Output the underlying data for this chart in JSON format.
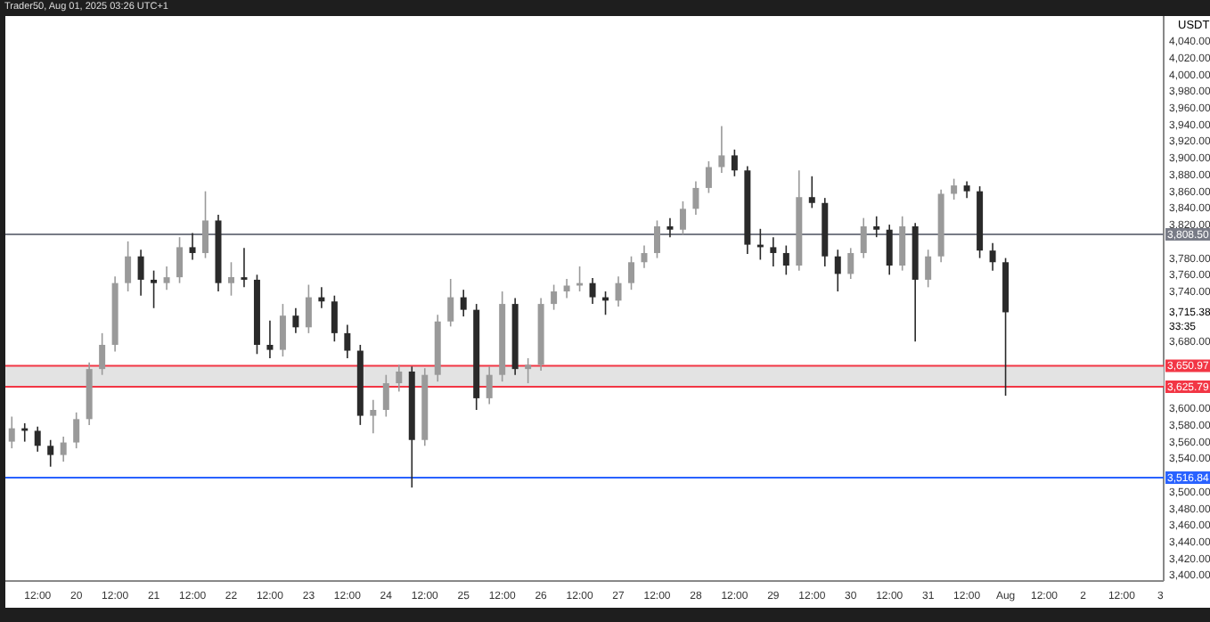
{
  "chart_data": {
    "type": "candlestick",
    "title": "Trader50, Aug 01, 2025 03:26 UTC+1",
    "ylabel": "USDT",
    "x": [
      "2025-07-19T04:00",
      "2025-07-19T08:00",
      "2025-07-19T12:00",
      "2025-07-19T16:00",
      "2025-07-19T20:00",
      "2025-07-20T00:00",
      "2025-07-20T04:00",
      "2025-07-20T08:00",
      "2025-07-20T12:00",
      "2025-07-20T16:00",
      "2025-07-20T20:00",
      "2025-07-21T00:00",
      "2025-07-21T04:00",
      "2025-07-21T08:00",
      "2025-07-21T12:00",
      "2025-07-21T16:00",
      "2025-07-21T20:00",
      "2025-07-22T00:00",
      "2025-07-22T04:00",
      "2025-07-22T08:00",
      "2025-07-22T12:00",
      "2025-07-22T16:00",
      "2025-07-22T20:00",
      "2025-07-23T00:00",
      "2025-07-23T04:00",
      "2025-07-23T08:00",
      "2025-07-23T12:00",
      "2025-07-23T16:00",
      "2025-07-23T20:00",
      "2025-07-24T00:00",
      "2025-07-24T04:00",
      "2025-07-24T08:00",
      "2025-07-24T12:00",
      "2025-07-24T16:00",
      "2025-07-24T20:00",
      "2025-07-25T00:00",
      "2025-07-25T04:00",
      "2025-07-25T08:00",
      "2025-07-25T12:00",
      "2025-07-25T16:00",
      "2025-07-25T20:00",
      "2025-07-26T00:00",
      "2025-07-26T04:00",
      "2025-07-26T08:00",
      "2025-07-26T12:00",
      "2025-07-26T16:00",
      "2025-07-26T20:00",
      "2025-07-27T00:00",
      "2025-07-27T04:00",
      "2025-07-27T08:00",
      "2025-07-27T12:00",
      "2025-07-27T16:00",
      "2025-07-27T20:00",
      "2025-07-28T00:00",
      "2025-07-28T04:00",
      "2025-07-28T08:00",
      "2025-07-28T12:00",
      "2025-07-28T16:00",
      "2025-07-28T20:00",
      "2025-07-29T00:00",
      "2025-07-29T04:00",
      "2025-07-29T08:00",
      "2025-07-29T12:00",
      "2025-07-29T16:00",
      "2025-07-29T20:00",
      "2025-07-30T00:00",
      "2025-07-30T04:00",
      "2025-07-30T08:00",
      "2025-07-30T12:00",
      "2025-07-30T16:00",
      "2025-07-30T20:00",
      "2025-07-31T00:00",
      "2025-07-31T04:00",
      "2025-07-31T08:00",
      "2025-07-31T12:00",
      "2025-07-31T16:00",
      "2025-07-31T20:00",
      "2025-08-01T00:00"
    ],
    "ohlc": [
      [
        3560,
        3590,
        3552,
        3576
      ],
      [
        3576,
        3582,
        3560,
        3573
      ],
      [
        3573,
        3578,
        3548,
        3555
      ],
      [
        3555,
        3562,
        3530,
        3544
      ],
      [
        3544,
        3566,
        3536,
        3559
      ],
      [
        3559,
        3595,
        3552,
        3587
      ],
      [
        3587,
        3655,
        3580,
        3647
      ],
      [
        3647,
        3690,
        3640,
        3676
      ],
      [
        3676,
        3758,
        3668,
        3750
      ],
      [
        3750,
        3800,
        3740,
        3782
      ],
      [
        3782,
        3790,
        3735,
        3754
      ],
      [
        3754,
        3765,
        3720,
        3750
      ],
      [
        3750,
        3770,
        3742,
        3757
      ],
      [
        3757,
        3805,
        3750,
        3793
      ],
      [
        3793,
        3810,
        3778,
        3786
      ],
      [
        3786,
        3860,
        3780,
        3825
      ],
      [
        3825,
        3832,
        3740,
        3750
      ],
      [
        3750,
        3775,
        3735,
        3757
      ],
      [
        3757,
        3792,
        3745,
        3754
      ],
      [
        3754,
        3760,
        3665,
        3676
      ],
      [
        3676,
        3705,
        3660,
        3670
      ],
      [
        3670,
        3725,
        3662,
        3711
      ],
      [
        3711,
        3720,
        3690,
        3697
      ],
      [
        3697,
        3748,
        3690,
        3733
      ],
      [
        3733,
        3745,
        3720,
        3728
      ],
      [
        3728,
        3735,
        3680,
        3690
      ],
      [
        3690,
        3700,
        3660,
        3669
      ],
      [
        3669,
        3676,
        3580,
        3591
      ],
      [
        3591,
        3610,
        3570,
        3598
      ],
      [
        3598,
        3640,
        3590,
        3630
      ],
      [
        3630,
        3652,
        3620,
        3644
      ],
      [
        3644,
        3650,
        3505,
        3562
      ],
      [
        3562,
        3648,
        3555,
        3640
      ],
      [
        3640,
        3712,
        3632,
        3704
      ],
      [
        3704,
        3755,
        3698,
        3733
      ],
      [
        3733,
        3742,
        3710,
        3718
      ],
      [
        3718,
        3725,
        3598,
        3612
      ],
      [
        3612,
        3650,
        3605,
        3640
      ],
      [
        3640,
        3740,
        3632,
        3725
      ],
      [
        3725,
        3732,
        3640,
        3647
      ],
      [
        3647,
        3660,
        3630,
        3652
      ],
      [
        3652,
        3732,
        3645,
        3725
      ],
      [
        3725,
        3748,
        3718,
        3740
      ],
      [
        3740,
        3755,
        3732,
        3747
      ],
      [
        3747,
        3770,
        3740,
        3750
      ],
      [
        3750,
        3756,
        3725,
        3733
      ],
      [
        3733,
        3740,
        3712,
        3729
      ],
      [
        3729,
        3758,
        3722,
        3750
      ],
      [
        3750,
        3782,
        3742,
        3775
      ],
      [
        3775,
        3795,
        3768,
        3786
      ],
      [
        3786,
        3825,
        3780,
        3818
      ],
      [
        3818,
        3828,
        3805,
        3814
      ],
      [
        3814,
        3848,
        3808,
        3839
      ],
      [
        3839,
        3872,
        3832,
        3864
      ],
      [
        3864,
        3896,
        3858,
        3889
      ],
      [
        3889,
        3938,
        3882,
        3903
      ],
      [
        3903,
        3910,
        3878,
        3885
      ],
      [
        3885,
        3890,
        3785,
        3796
      ],
      [
        3796,
        3815,
        3778,
        3793
      ],
      [
        3793,
        3805,
        3770,
        3786
      ],
      [
        3786,
        3795,
        3760,
        3771
      ],
      [
        3771,
        3885,
        3765,
        3853
      ],
      [
        3853,
        3878,
        3840,
        3846
      ],
      [
        3846,
        3852,
        3770,
        3782
      ],
      [
        3782,
        3790,
        3740,
        3761
      ],
      [
        3761,
        3792,
        3755,
        3786
      ],
      [
        3786,
        3828,
        3780,
        3818
      ],
      [
        3818,
        3830,
        3805,
        3814
      ],
      [
        3814,
        3820,
        3760,
        3771
      ],
      [
        3771,
        3830,
        3765,
        3818
      ],
      [
        3818,
        3822,
        3680,
        3754
      ],
      [
        3754,
        3790,
        3745,
        3782
      ],
      [
        3782,
        3862,
        3775,
        3857
      ],
      [
        3857,
        3875,
        3850,
        3867
      ],
      [
        3867,
        3872,
        3852,
        3860
      ],
      [
        3860,
        3866,
        3780,
        3789
      ],
      [
        3789,
        3798,
        3765,
        3775
      ],
      [
        3775,
        3780,
        3615,
        3715
      ]
    ],
    "xlim": [
      "2025-07-19T02:00",
      "2025-08-03T01:00"
    ],
    "xticks": [
      {
        "value": "2025-07-19T12:00",
        "label": "12:00"
      },
      {
        "value": "2025-07-20T00:00",
        "label": "20"
      },
      {
        "value": "2025-07-20T12:00",
        "label": "12:00"
      },
      {
        "value": "2025-07-21T00:00",
        "label": "21"
      },
      {
        "value": "2025-07-21T12:00",
        "label": "12:00"
      },
      {
        "value": "2025-07-22T00:00",
        "label": "22"
      },
      {
        "value": "2025-07-22T12:00",
        "label": "12:00"
      },
      {
        "value": "2025-07-23T00:00",
        "label": "23"
      },
      {
        "value": "2025-07-23T12:00",
        "label": "12:00"
      },
      {
        "value": "2025-07-24T00:00",
        "label": "24"
      },
      {
        "value": "2025-07-24T12:00",
        "label": "12:00"
      },
      {
        "value": "2025-07-25T00:00",
        "label": "25"
      },
      {
        "value": "2025-07-25T12:00",
        "label": "12:00"
      },
      {
        "value": "2025-07-26T00:00",
        "label": "26"
      },
      {
        "value": "2025-07-26T12:00",
        "label": "12:00"
      },
      {
        "value": "2025-07-27T00:00",
        "label": "27"
      },
      {
        "value": "2025-07-27T12:00",
        "label": "12:00"
      },
      {
        "value": "2025-07-28T00:00",
        "label": "28"
      },
      {
        "value": "2025-07-28T12:00",
        "label": "12:00"
      },
      {
        "value": "2025-07-29T00:00",
        "label": "29"
      },
      {
        "value": "2025-07-29T12:00",
        "label": "12:00"
      },
      {
        "value": "2025-07-30T00:00",
        "label": "30"
      },
      {
        "value": "2025-07-30T12:00",
        "label": "12:00"
      },
      {
        "value": "2025-07-31T00:00",
        "label": "31"
      },
      {
        "value": "2025-07-31T12:00",
        "label": "12:00"
      },
      {
        "value": "2025-08-01T00:00",
        "label": "Aug"
      },
      {
        "value": "2025-08-01T12:00",
        "label": "12:00"
      },
      {
        "value": "2025-08-02T00:00",
        "label": "2"
      },
      {
        "value": "2025-08-02T12:00",
        "label": "12:00"
      },
      {
        "value": "2025-08-03T00:00",
        "label": "3"
      }
    ],
    "ylim": [
      3393,
      4070
    ],
    "yticks": [
      {
        "value": 4040,
        "label": "4,040.00"
      },
      {
        "value": 4020,
        "label": "4,020.00"
      },
      {
        "value": 4000,
        "label": "4,000.00"
      },
      {
        "value": 3980,
        "label": "3,980.00"
      },
      {
        "value": 3960,
        "label": "3,960.00"
      },
      {
        "value": 3940,
        "label": "3,940.00"
      },
      {
        "value": 3920,
        "label": "3,920.00"
      },
      {
        "value": 3900,
        "label": "3,900.00"
      },
      {
        "value": 3880,
        "label": "3,880.00"
      },
      {
        "value": 3860,
        "label": "3,860.00"
      },
      {
        "value": 3840,
        "label": "3,840.00"
      },
      {
        "value": 3820,
        "label": "3,820.00"
      },
      {
        "value": 3780,
        "label": "3,780.00"
      },
      {
        "value": 3760,
        "label": "3,760.00"
      },
      {
        "value": 3740,
        "label": "3,740.00"
      },
      {
        "value": 3680,
        "label": "3,680.00"
      },
      {
        "value": 3600,
        "label": "3,600.00"
      },
      {
        "value": 3580,
        "label": "3,580.00"
      },
      {
        "value": 3560,
        "label": "3,560.00"
      },
      {
        "value": 3540,
        "label": "3,540.00"
      },
      {
        "value": 3500,
        "label": "3,500.00"
      },
      {
        "value": 3480,
        "label": "3,480.00"
      },
      {
        "value": 3460,
        "label": "3,460.00"
      },
      {
        "value": 3440,
        "label": "3,440.00"
      },
      {
        "value": 3420,
        "label": "3,420.00"
      },
      {
        "value": 3400,
        "label": "3,400.00"
      }
    ],
    "ref_lines": [
      {
        "axis": "y",
        "value": 3808.5,
        "label": "3,808.50",
        "color": "#787b86"
      },
      {
        "axis": "y",
        "value": 3516.84,
        "label": "3,516.84",
        "color": "#2962ff"
      },
      {
        "axis": "y",
        "value": 3650.97,
        "label": "3,650.97",
        "color": "#f23645"
      },
      {
        "axis": "y",
        "value": 3625.79,
        "label": "3,625.79",
        "color": "#f23645"
      }
    ],
    "bands": [
      {
        "axis": "y",
        "from": 3625.79,
        "to": 3650.97,
        "color": "#e0e0e0"
      }
    ],
    "annotations": [
      "3,715.38",
      "33:35"
    ]
  }
}
